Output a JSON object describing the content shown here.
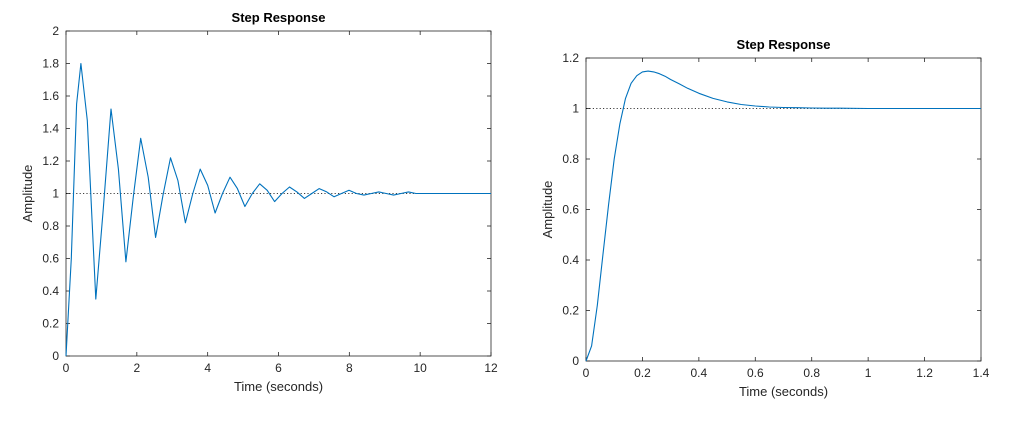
{
  "chart_data": [
    {
      "type": "line",
      "title": "Step Response",
      "xlabel": "Time (seconds)",
      "ylabel": "Amplitude",
      "xlim": [
        0,
        12
      ],
      "ylim": [
        0,
        2
      ],
      "xticks": [
        "0",
        "2",
        "4",
        "6",
        "8",
        "10",
        "12"
      ],
      "yticks": [
        "0",
        "0.2",
        "0.4",
        "0.6",
        "0.8",
        "1",
        "1.2",
        "1.4",
        "1.6",
        "1.8",
        "2"
      ],
      "reference_line": 1,
      "grid": false,
      "series": [
        {
          "color": "#0072BD",
          "x": [
            0,
            0.15,
            0.3,
            0.42,
            0.6,
            0.84,
            1.05,
            1.27,
            1.48,
            1.69,
            1.9,
            2.11,
            2.32,
            2.53,
            2.74,
            2.95,
            3.16,
            3.37,
            3.58,
            3.79,
            4.0,
            4.21,
            4.42,
            4.63,
            4.84,
            5.05,
            5.26,
            5.47,
            5.68,
            5.89,
            6.1,
            6.31,
            6.52,
            6.73,
            6.94,
            7.15,
            7.36,
            7.57,
            7.78,
            7.99,
            8.2,
            8.41,
            8.62,
            8.83,
            9.04,
            9.25,
            9.46,
            9.67,
            9.88,
            10.09,
            10.3,
            10.51,
            10.72,
            10.93,
            11.14,
            11.35,
            11.56,
            11.77,
            12.0
          ],
          "y": [
            0,
            0.6,
            1.55,
            1.8,
            1.45,
            0.35,
            0.9,
            1.52,
            1.15,
            0.58,
            0.98,
            1.34,
            1.1,
            0.73,
            0.99,
            1.22,
            1.08,
            0.82,
            1.0,
            1.15,
            1.05,
            0.88,
            1.0,
            1.1,
            1.03,
            0.92,
            1.0,
            1.06,
            1.02,
            0.95,
            1.0,
            1.04,
            1.01,
            0.97,
            1.0,
            1.03,
            1.01,
            0.98,
            1.0,
            1.02,
            1.0,
            0.99,
            1.0,
            1.01,
            1.0,
            0.99,
            1.0,
            1.01,
            1.0,
            1.0,
            1.0,
            1.0,
            1.0,
            1.0,
            1.0,
            1.0,
            1.0,
            1.0,
            1.0
          ]
        }
      ]
    },
    {
      "type": "line",
      "title": "Step Response",
      "xlabel": "Time (seconds)",
      "ylabel": "Amplitude",
      "xlim": [
        0,
        1.4
      ],
      "ylim": [
        0,
        1.2
      ],
      "xticks": [
        "0",
        "0.2",
        "0.4",
        "0.6",
        "0.8",
        "1",
        "1.2",
        "1.4"
      ],
      "yticks": [
        "0",
        "0.2",
        "0.4",
        "0.6",
        "0.8",
        "1",
        "1.2"
      ],
      "reference_line": 1,
      "grid": false,
      "series": [
        {
          "color": "#0072BD",
          "x": [
            0,
            0.02,
            0.04,
            0.06,
            0.08,
            0.1,
            0.12,
            0.14,
            0.16,
            0.18,
            0.2,
            0.22,
            0.24,
            0.26,
            0.28,
            0.3,
            0.33,
            0.36,
            0.4,
            0.45,
            0.5,
            0.55,
            0.6,
            0.65,
            0.7,
            0.75,
            0.8,
            0.85,
            0.9,
            1.0,
            1.1,
            1.2,
            1.3,
            1.4
          ],
          "y": [
            0,
            0.06,
            0.22,
            0.42,
            0.62,
            0.8,
            0.94,
            1.04,
            1.1,
            1.13,
            1.145,
            1.148,
            1.145,
            1.138,
            1.128,
            1.115,
            1.098,
            1.08,
            1.06,
            1.04,
            1.026,
            1.016,
            1.01,
            1.006,
            1.004,
            1.003,
            1.002,
            1.001,
            1.001,
            1.0,
            1.0,
            1.0,
            1.0,
            1.0
          ]
        }
      ]
    }
  ]
}
